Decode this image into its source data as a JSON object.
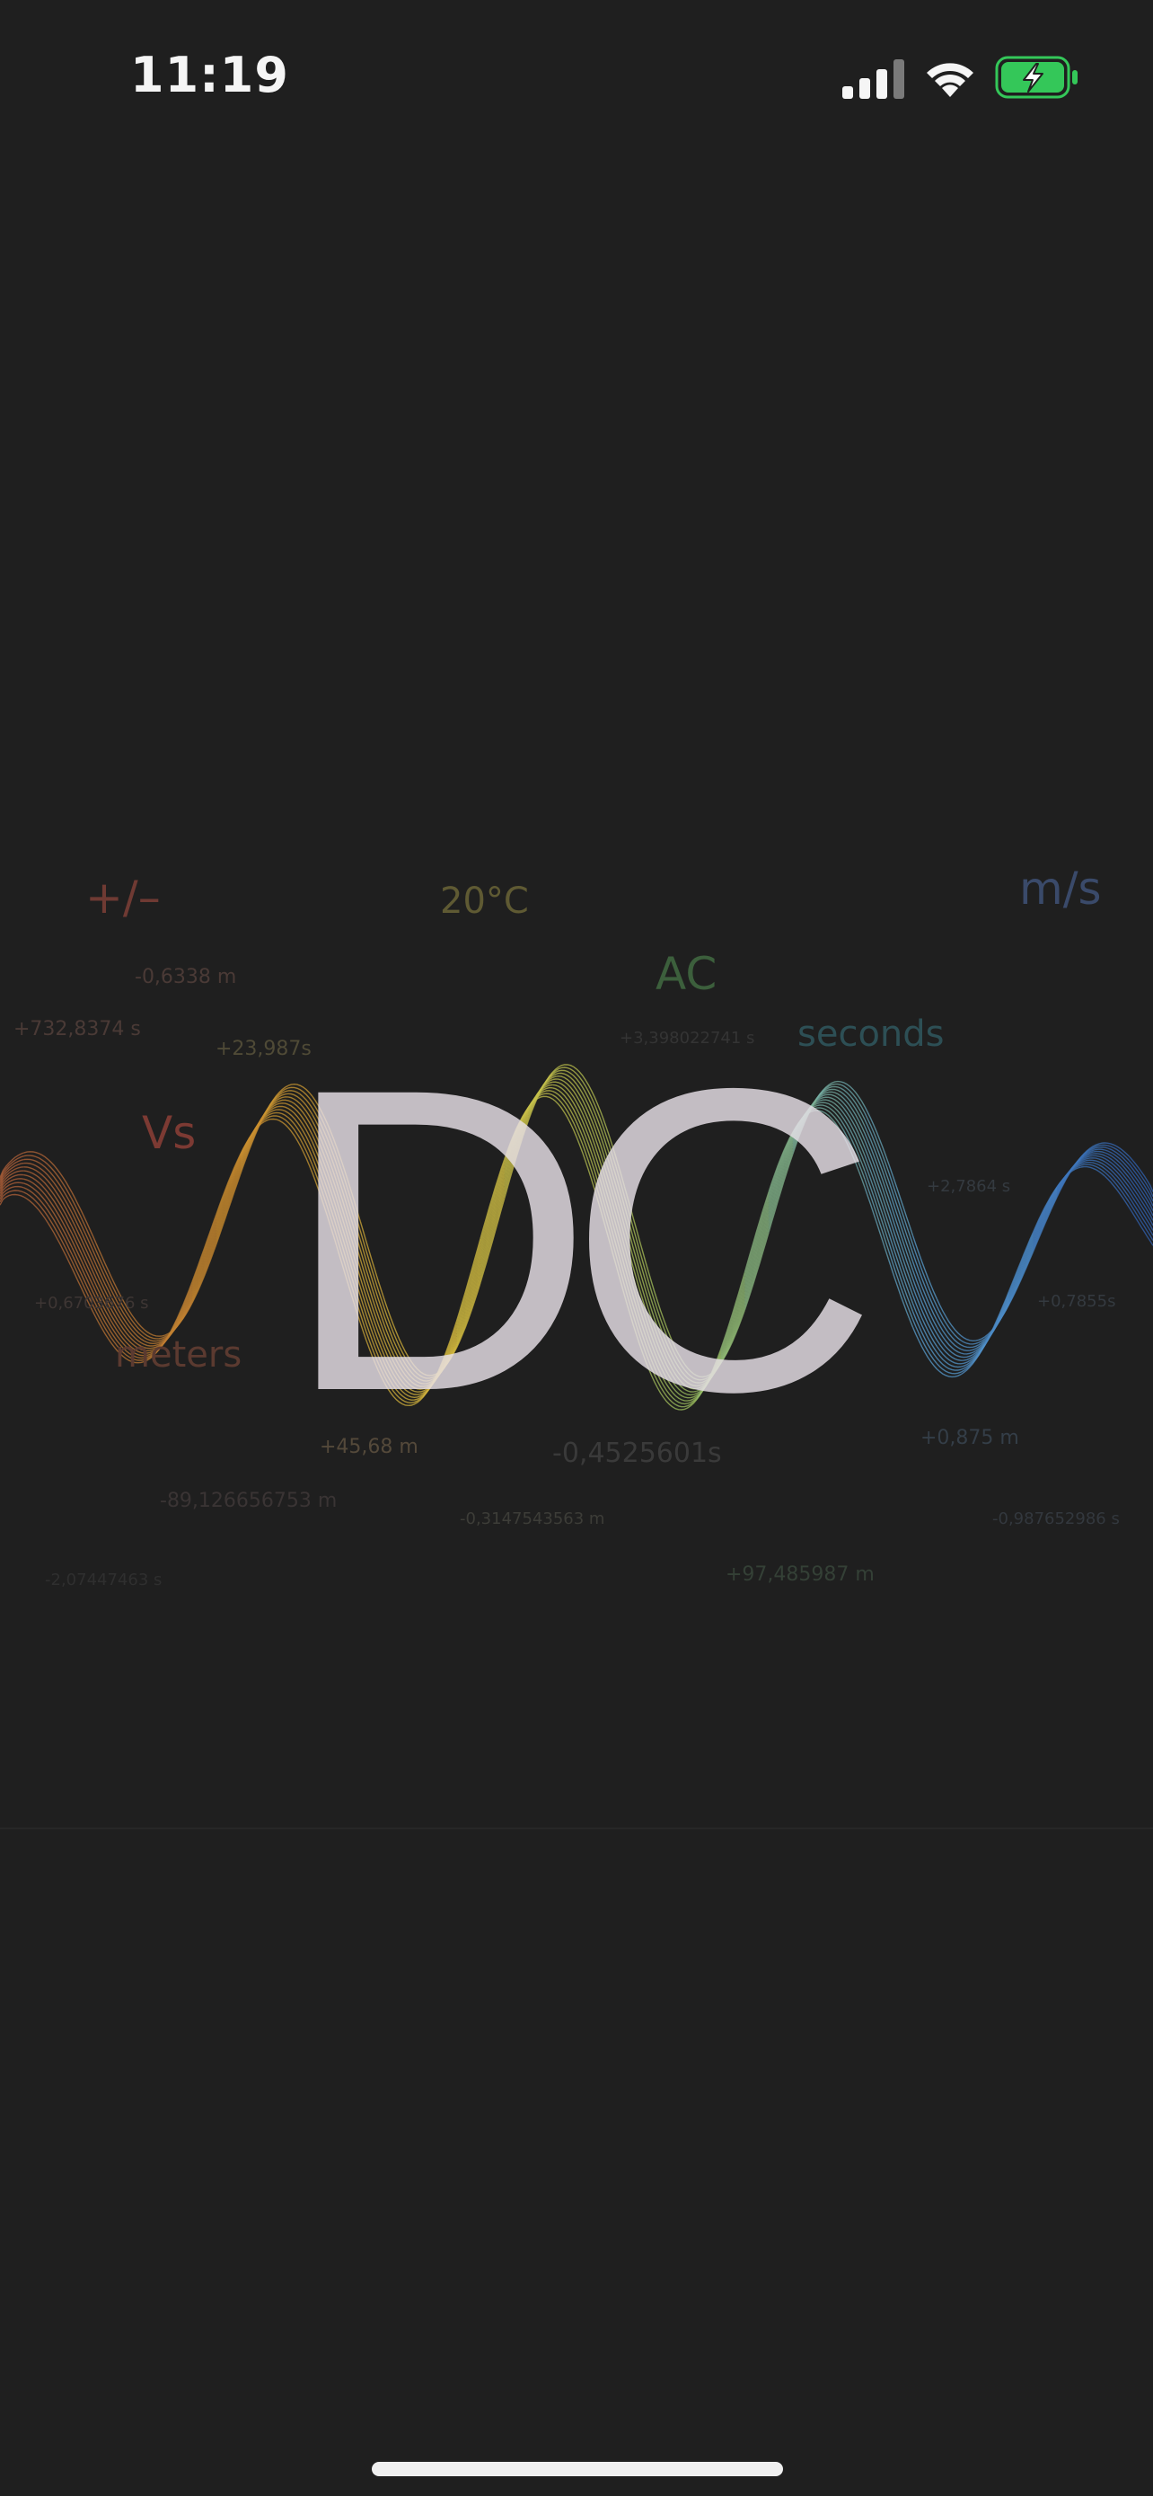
{
  "status_bar": {
    "time": "11:19",
    "icons": [
      "cellular-signal-icon",
      "wifi-icon",
      "battery-charging-icon"
    ],
    "battery_color": "#34c759"
  },
  "splash": {
    "logo_text": "DC",
    "wave_colors": [
      "#b0603a",
      "#c78a2e",
      "#d9c040",
      "#9cc060",
      "#5aa0d0",
      "#3060b0"
    ],
    "labels": {
      "plus_minus": "+/–",
      "twenty_c": "20°C",
      "m_per_s": "m/s",
      "ac": "AC",
      "seconds": "seconds",
      "vs": "Vs",
      "meters": "meters",
      "v1": "-0,6338 m",
      "v2": "+732,8374 s",
      "v3": "+23,987s",
      "v4": "+3,398022741 s",
      "v5": "+0,6703676 s",
      "v6": "+2,7864 s",
      "v7": "+0,7855s",
      "v8": "+45,68 m",
      "v9": "-0,4525601s",
      "v10": "+0,875 m",
      "v11": "-89,126656753 m",
      "v12": "-0,3147543563 m",
      "v13": "-0,987652986 s",
      "v14": "+97,485987 m",
      "v15": "-2,07447463 s"
    }
  }
}
